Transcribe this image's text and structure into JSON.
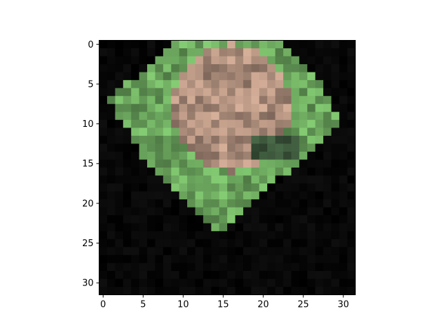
{
  "chart_data": {
    "type": "heatmap",
    "title": "",
    "xlabel": "",
    "ylabel": "",
    "grid": false,
    "xlim": [
      -0.5,
      31.5
    ],
    "ylim": [
      31.5,
      -0.5
    ],
    "x_ticks": [
      0,
      5,
      10,
      15,
      20,
      25,
      30
    ],
    "y_ticks": [
      0,
      5,
      10,
      15,
      20,
      25,
      30
    ],
    "x_tick_labels": [
      "0",
      "5",
      "10",
      "15",
      "20",
      "25",
      "30"
    ],
    "y_tick_labels": [
      "0",
      "5",
      "10",
      "15",
      "20",
      "25",
      "30"
    ],
    "image_size": [
      32,
      32
    ],
    "background_color": "#000000",
    "shapes": [
      {
        "name": "outer-green-region",
        "color": "#6da85f",
        "polygon": [
          [
            10,
            0
          ],
          [
            22,
            0
          ],
          [
            27,
            4
          ],
          [
            29,
            8
          ],
          [
            31,
            10
          ],
          [
            15,
            24
          ],
          [
            7,
            17
          ],
          [
            1,
            7
          ],
          [
            6,
            4
          ]
        ]
      },
      {
        "name": "tan-blob",
        "color": "#b0907e",
        "ellipse": {
          "cx": 16,
          "cy": 8,
          "rx": 7.5,
          "ry": 8
        }
      },
      {
        "name": "dark-shadow-patch",
        "color": "#3f5a3e",
        "ellipse": {
          "cx": 21.5,
          "cy": 13,
          "rx": 3,
          "ry": 2
        }
      }
    ]
  }
}
